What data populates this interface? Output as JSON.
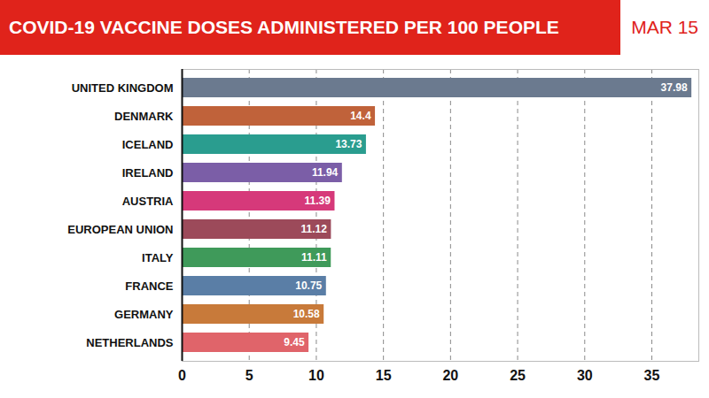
{
  "chart_data": {
    "type": "bar",
    "title": "COVID-19 VACCINE DOSES ADMINISTERED PER 100 PEOPLE",
    "subtitle": "MAR 15",
    "orientation": "horizontal",
    "categories": [
      "UNITED KINGDOM",
      "DENMARK",
      "ICELAND",
      "IRELAND",
      "AUSTRIA",
      "EUROPEAN UNION",
      "ITALY",
      "FRANCE",
      "GERMANY",
      "NETHERLANDS"
    ],
    "values": [
      37.98,
      14.4,
      13.73,
      11.94,
      11.39,
      11.12,
      11.11,
      10.75,
      10.58,
      9.45
    ],
    "colors": [
      "#6b7a8f",
      "#c0623a",
      "#2a9d8f",
      "#7b5ea7",
      "#d6397a",
      "#9c4a5a",
      "#3f9a5a",
      "#5a7ea6",
      "#c87a3a",
      "#e0646a"
    ],
    "xlim": [
      0,
      38.5
    ],
    "xticks": [
      0,
      5,
      10,
      15,
      20,
      25,
      30,
      35
    ],
    "grid": true,
    "data_labels": true
  }
}
